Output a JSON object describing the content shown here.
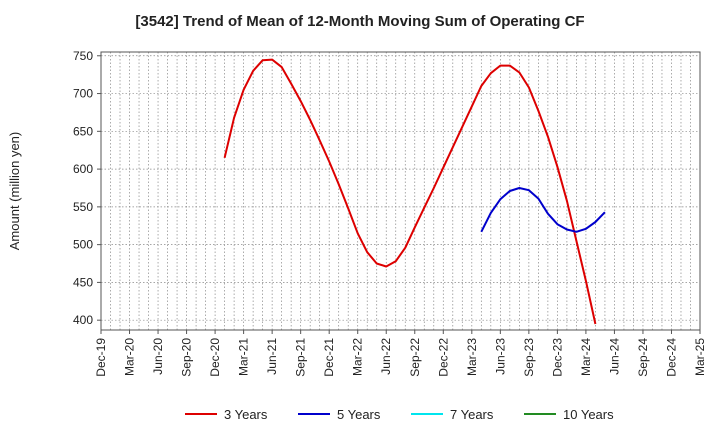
{
  "chart_data": {
    "type": "line",
    "title": "[3542]  Trend of Mean of 12-Month Moving Sum of Operating CF",
    "xlabel": "",
    "ylabel": "Amount (million yen)",
    "ylim": [
      387,
      755
    ],
    "yticks": [
      400,
      450,
      500,
      550,
      600,
      650,
      700,
      750
    ],
    "xticks": [
      "Dec-19",
      "Mar-20",
      "Jun-20",
      "Sep-20",
      "Dec-20",
      "Mar-21",
      "Jun-21",
      "Sep-21",
      "Dec-21",
      "Mar-22",
      "Jun-22",
      "Sep-22",
      "Dec-22",
      "Mar-23",
      "Jun-23",
      "Sep-23",
      "Dec-23",
      "Mar-24",
      "Jun-24",
      "Sep-24",
      "Dec-24",
      "Mar-25"
    ],
    "grid": true,
    "legend_position": "bottom",
    "series": [
      {
        "name": "3 Years",
        "color": "#dd0000",
        "start_index": 13,
        "values": [
          615,
          668,
          705,
          730,
          744,
          745,
          735,
          713,
          690,
          665,
          638,
          610,
          580,
          548,
          515,
          490,
          475,
          471,
          478,
          496,
          523,
          549,
          575,
          602,
          629,
          656,
          683,
          710,
          727,
          737,
          737,
          728,
          708,
          677,
          643,
          603,
          558,
          505,
          452,
          395
        ]
      },
      {
        "name": "5 Years",
        "color": "#0000cc",
        "start_index": 40,
        "values": [
          517,
          542,
          560,
          571,
          575,
          572,
          561,
          541,
          527,
          520,
          517,
          521,
          530,
          543
        ]
      },
      {
        "name": "7 Years",
        "color": "#00e5ee",
        "start_index": 0,
        "values": []
      },
      {
        "name": "10 Years",
        "color": "#228b22",
        "start_index": 0,
        "values": []
      }
    ]
  }
}
